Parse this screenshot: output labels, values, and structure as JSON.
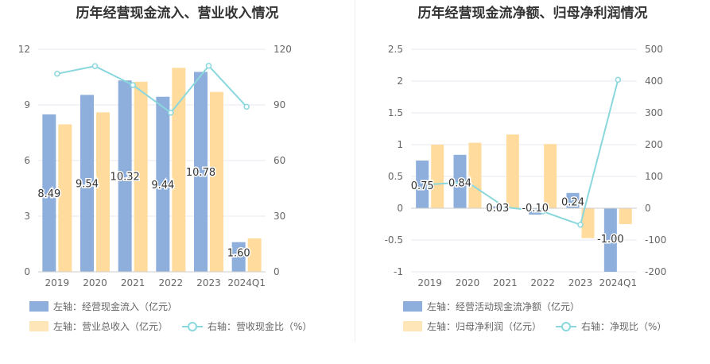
{
  "charts": [
    {
      "title": "历年经营现金流入、营业收入情况",
      "legend": [
        {
          "label": "左轴：经营现金流入（亿元）",
          "kind": "bar"
        },
        {
          "label": "左轴：营业总收入（亿元）",
          "kind": "bar"
        },
        {
          "label": "右轴：营收现金比（%）",
          "kind": "line"
        }
      ]
    },
    {
      "title": "历年经营现金流净额、归母净利润情况",
      "legend": [
        {
          "label": "左轴：经营活动现金流净额（亿元）",
          "kind": "bar"
        },
        {
          "label": "左轴：归母净利润（亿元）",
          "kind": "bar"
        },
        {
          "label": "右轴：净现比（%）",
          "kind": "line"
        }
      ]
    }
  ],
  "colors": {
    "bar1": "#8eaedc",
    "bar2": "#ffdc9e",
    "line": "#8ad8dd",
    "grid": "#e8eaf2",
    "axis_text": "#666666",
    "label_text": "#333333"
  },
  "chart_data": [
    {
      "type": "bar",
      "title": "历年经营现金流入、营业收入情况",
      "categories": [
        "2019",
        "2020",
        "2021",
        "2022",
        "2023",
        "2024Q1"
      ],
      "left_ticks": [
        "0",
        "3",
        "6",
        "9",
        "12"
      ],
      "right_ticks": [
        "0",
        "30",
        "60",
        "90",
        "120"
      ],
      "ylim_left": [
        0,
        12
      ],
      "ylim_right": [
        0,
        120
      ],
      "series": [
        {
          "name": "经营现金流入（亿元）",
          "axis": "left",
          "kind": "bar",
          "values": [
            8.49,
            9.54,
            10.32,
            9.44,
            10.78,
            1.6
          ],
          "labels": [
            "8.49",
            "9.54",
            "10.32",
            "9.44",
            "10.78",
            "1.60"
          ]
        },
        {
          "name": "营业总收入（亿元）",
          "axis": "left",
          "kind": "bar",
          "values": [
            7.95,
            8.6,
            10.25,
            11.0,
            9.7,
            1.8
          ]
        },
        {
          "name": "营收现金比（%）",
          "axis": "right",
          "kind": "line",
          "values": [
            106.8,
            110.9,
            100.7,
            85.8,
            111.1,
            89.0
          ]
        }
      ],
      "grid": true,
      "legend_position": "bottom"
    },
    {
      "type": "bar",
      "title": "历年经营现金流净额、归母净利润情况",
      "categories": [
        "2019",
        "2020",
        "2021",
        "2022",
        "2023",
        "2024Q1"
      ],
      "left_ticks": [
        "-1",
        "-0.5",
        "0",
        "0.5",
        "1",
        "1.5",
        "2",
        "2.5"
      ],
      "right_ticks": [
        "-200",
        "-100",
        "0",
        "100",
        "200",
        "300",
        "400",
        "500"
      ],
      "ylim_left": [
        -1,
        2.5
      ],
      "ylim_right": [
        -200,
        500
      ],
      "series": [
        {
          "name": "经营活动现金流净额（亿元）",
          "axis": "left",
          "kind": "bar",
          "values": [
            0.75,
            0.84,
            0.03,
            -0.1,
            0.24,
            -1.0
          ],
          "labels": [
            "0.75",
            "0.84",
            "0.03",
            "-0.10",
            "0.24",
            "-1.00"
          ]
        },
        {
          "name": "归母净利润（亿元）",
          "axis": "left",
          "kind": "bar",
          "values": [
            1.0,
            1.03,
            1.16,
            1.01,
            -0.47,
            -0.25
          ]
        },
        {
          "name": "净现比（%）",
          "axis": "right",
          "kind": "line",
          "values": [
            75,
            82,
            3,
            -10,
            -52,
            404
          ]
        }
      ],
      "grid": true,
      "legend_position": "bottom"
    }
  ]
}
